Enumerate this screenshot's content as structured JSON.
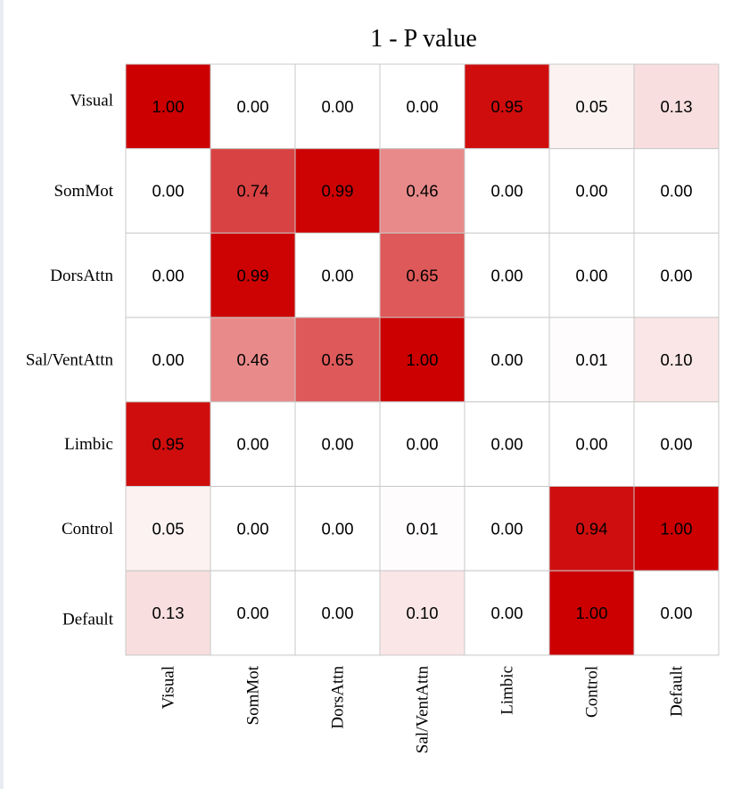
{
  "chart_data": {
    "type": "heatmap",
    "title": "1 - P value",
    "rows": [
      "Visual",
      "SomMot",
      "DorsAttn",
      "Sal/VentAttn",
      "Limbic",
      "Control",
      "Default"
    ],
    "columns": [
      "Visual",
      "SomMot",
      "DorsAttn",
      "Sal/VentAttn",
      "Limbic",
      "Control",
      "Default"
    ],
    "values": [
      [
        1.0,
        0.0,
        0.0,
        0.0,
        0.95,
        0.05,
        0.13
      ],
      [
        0.0,
        0.74,
        0.99,
        0.46,
        0.0,
        0.0,
        0.0
      ],
      [
        0.0,
        0.99,
        0.0,
        0.65,
        0.0,
        0.0,
        0.0
      ],
      [
        0.0,
        0.46,
        0.65,
        1.0,
        0.0,
        0.01,
        0.1
      ],
      [
        0.95,
        0.0,
        0.0,
        0.0,
        0.0,
        0.0,
        0.0
      ],
      [
        0.05,
        0.0,
        0.0,
        0.01,
        0.0,
        0.94,
        1.0
      ],
      [
        0.13,
        0.0,
        0.0,
        0.1,
        0.0,
        1.0,
        0.0
      ]
    ],
    "value_range": [
      0,
      1
    ],
    "value_format": "0.00",
    "colormap": {
      "low": "#ffffff",
      "high": "#cc0000"
    },
    "grid": true,
    "legend": "none"
  }
}
